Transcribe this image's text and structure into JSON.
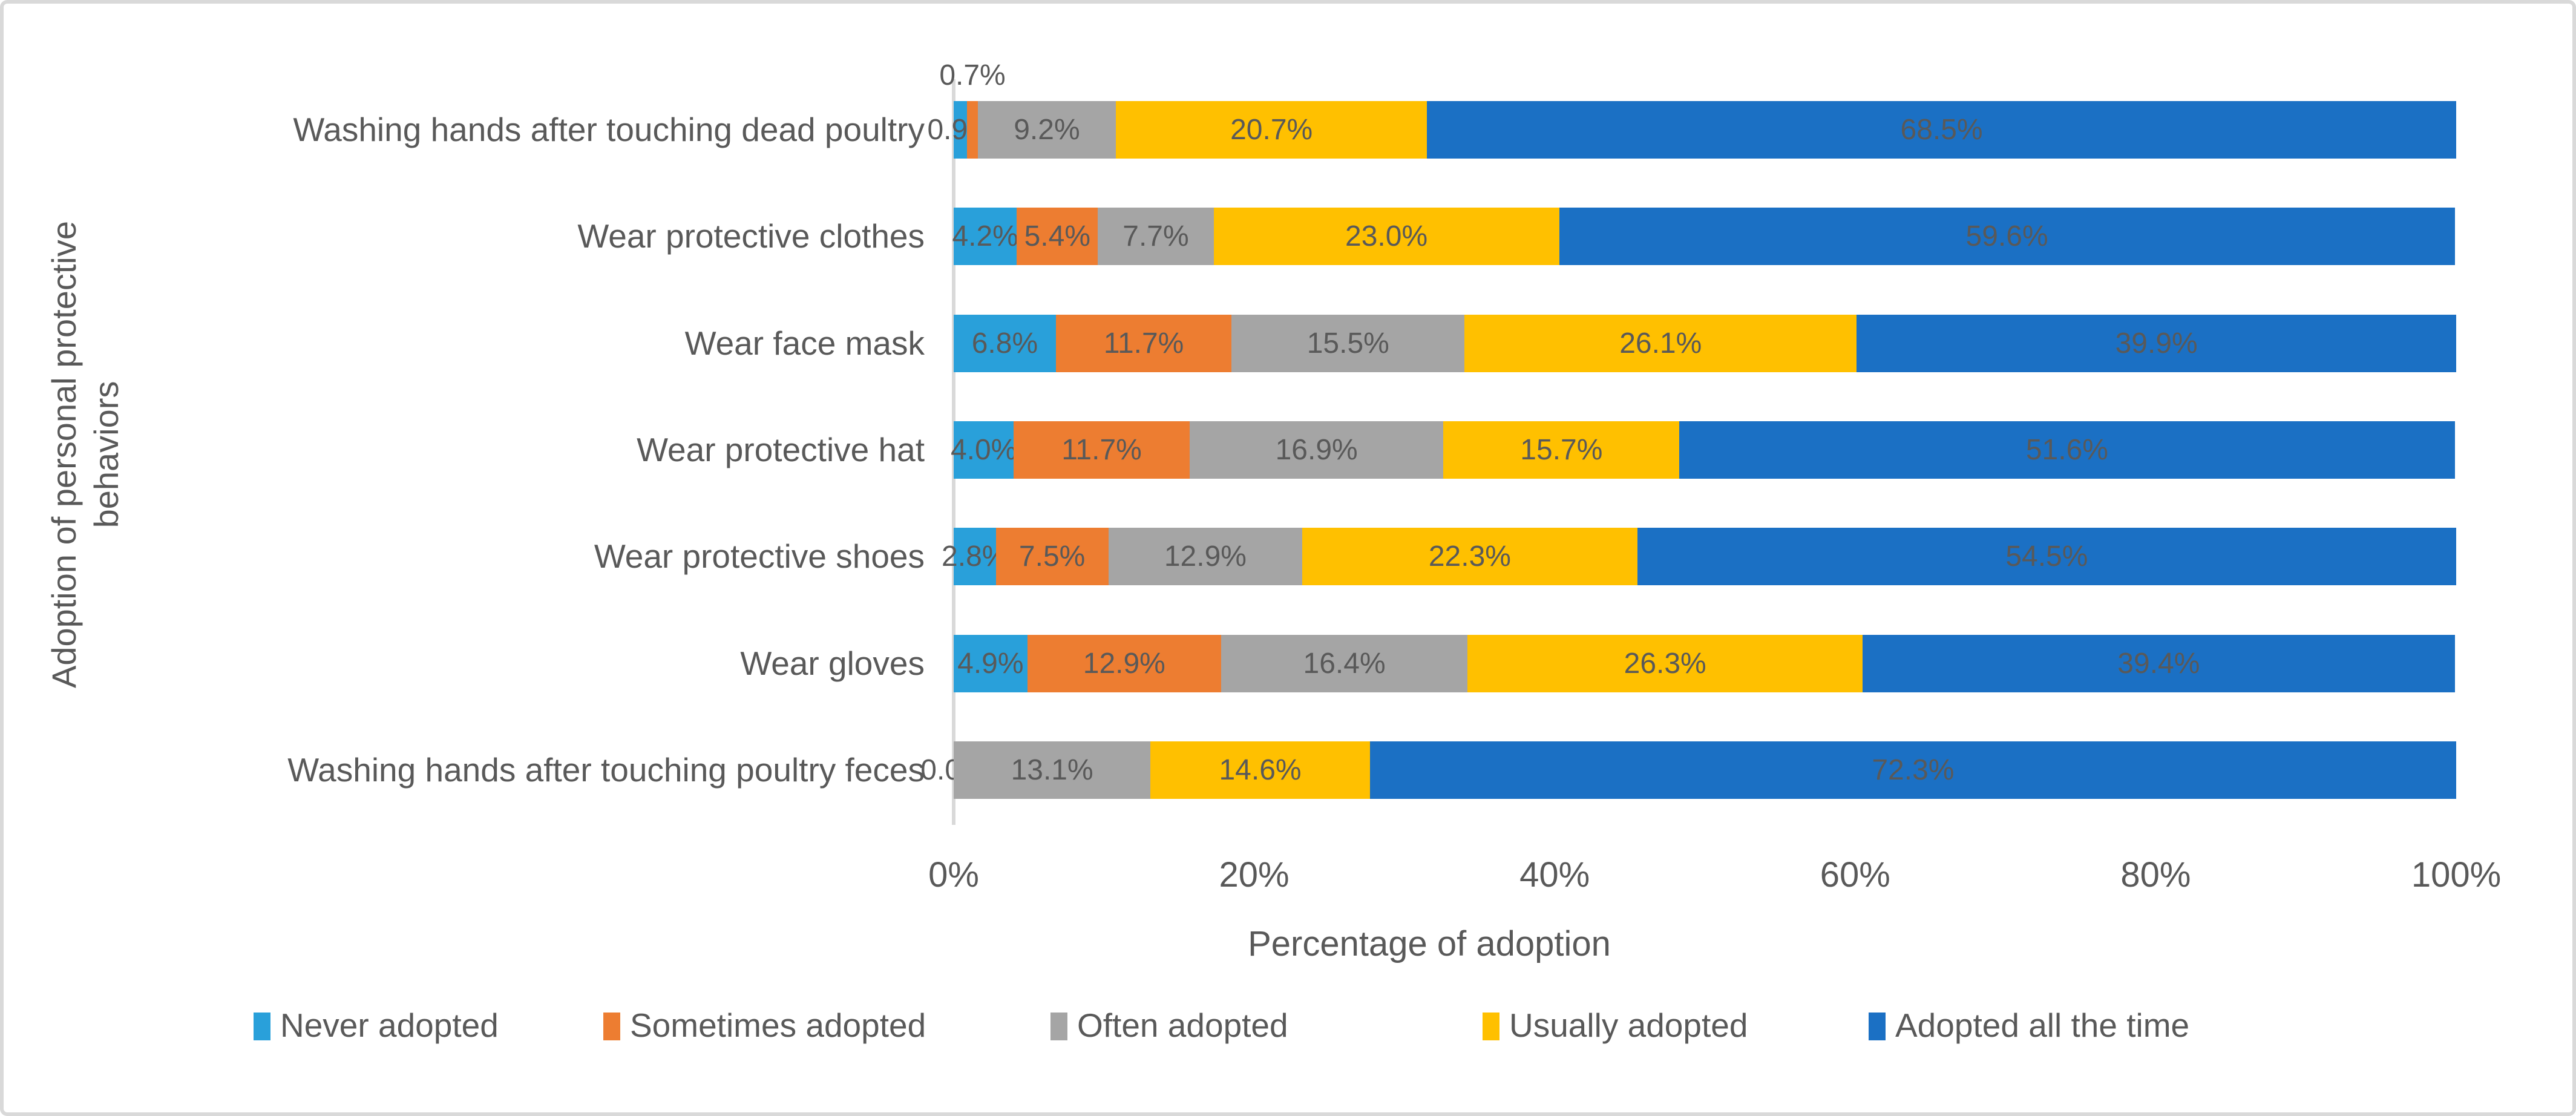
{
  "chart_data": {
    "type": "bar",
    "orientation": "horizontal",
    "stacked": true,
    "title": "",
    "xlabel": "Percentage of adoption",
    "ylabel": "Adoption of personal protective behaviors",
    "xlim": [
      0,
      100
    ],
    "x_ticks": [
      "0%",
      "20%",
      "40%",
      "60%",
      "80%",
      "100%"
    ],
    "grid": false,
    "legend_position": "bottom",
    "data_labels": "one decimal percent",
    "categories": [
      "Washing hands after touching dead poultry",
      "Wear protective clothes",
      "Wear face mask",
      "Wear protective hat",
      "Wear protective shoes",
      "Wear gloves",
      "Washing hands after touching poultry feces"
    ],
    "series": [
      {
        "name": "Never adopted",
        "color": "#29A0DA",
        "values": [
          0.9,
          4.2,
          6.8,
          4.0,
          2.8,
          4.9,
          0.0
        ]
      },
      {
        "name": "Sometimes adopted",
        "color": "#ED7D31",
        "values": [
          0.7,
          5.4,
          11.7,
          11.7,
          7.5,
          12.9,
          0.0
        ]
      },
      {
        "name": "Often adopted",
        "color": "#A5A5A5",
        "values": [
          9.2,
          7.7,
          15.5,
          16.9,
          12.9,
          16.4,
          13.1
        ]
      },
      {
        "name": "Usually adopted",
        "color": "#FFC000",
        "values": [
          20.7,
          23.0,
          26.1,
          15.7,
          22.3,
          26.3,
          14.6
        ]
      },
      {
        "name": "Adopted all the time",
        "color": "#1B70C4",
        "values": [
          68.5,
          59.6,
          39.9,
          51.6,
          54.5,
          39.4,
          72.3
        ]
      }
    ],
    "label_overrides": [
      {
        "category": 0,
        "series": 1,
        "position": "above"
      }
    ],
    "hidden_zero_labels": [
      {
        "category": 6,
        "series": 1
      }
    ]
  },
  "style": {
    "axis_color": "#d9d9d9",
    "text_color": "#595959"
  }
}
